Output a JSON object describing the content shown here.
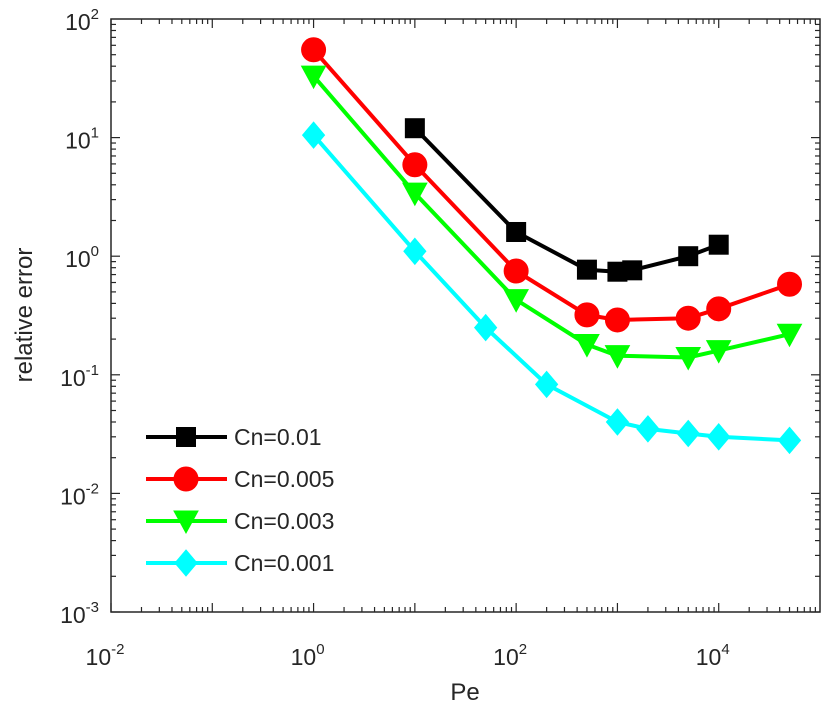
{
  "chart_data": {
    "type": "line",
    "title": "",
    "xlabel": "Pe",
    "ylabel": "relative error",
    "xscale": "log",
    "yscale": "log",
    "xlim": [
      0.01,
      100000
    ],
    "ylim": [
      0.001,
      100
    ],
    "xticks": [
      {
        "base": "10",
        "exp": "-2",
        "value": 0.01
      },
      {
        "base": "10",
        "exp": "0",
        "value": 1
      },
      {
        "base": "10",
        "exp": "2",
        "value": 100
      },
      {
        "base": "10",
        "exp": "4",
        "value": 10000
      }
    ],
    "yticks": [
      {
        "base": "10",
        "exp": "-3",
        "value": 0.001
      },
      {
        "base": "10",
        "exp": "-2",
        "value": 0.01
      },
      {
        "base": "10",
        "exp": "-1",
        "value": 0.1
      },
      {
        "base": "10",
        "exp": "0",
        "value": 1
      },
      {
        "base": "10",
        "exp": "1",
        "value": 10
      },
      {
        "base": "10",
        "exp": "2",
        "value": 100
      }
    ],
    "grid": false,
    "legend_position": "bottom-left",
    "series": [
      {
        "name": "Cn=0.01",
        "color": "#000000",
        "marker": "square",
        "x": [
          10,
          100,
          500,
          1000,
          1400,
          5000,
          10000
        ],
        "y": [
          12.0,
          1.6,
          0.77,
          0.74,
          0.76,
          1.0,
          1.25
        ]
      },
      {
        "name": "Cn=0.005",
        "color": "#ff0000",
        "marker": "circle",
        "x": [
          1,
          10,
          100,
          500,
          1000,
          5000,
          10000,
          50000
        ],
        "y": [
          55,
          5.9,
          0.75,
          0.32,
          0.29,
          0.3,
          0.36,
          0.58
        ]
      },
      {
        "name": "Cn=0.003",
        "color": "#00ff00",
        "marker": "triangle-down",
        "x": [
          1,
          10,
          100,
          500,
          1000,
          5000,
          10000,
          50000
        ],
        "y": [
          33,
          3.4,
          0.43,
          0.18,
          0.145,
          0.14,
          0.16,
          0.22
        ]
      },
      {
        "name": "Cn=0.001",
        "color": "#00ffff",
        "marker": "diamond",
        "x": [
          1,
          10,
          50,
          200,
          1000,
          2000,
          5000,
          10000,
          50000
        ],
        "y": [
          10.5,
          1.1,
          0.25,
          0.083,
          0.04,
          0.035,
          0.032,
          0.03,
          0.028
        ]
      }
    ]
  }
}
